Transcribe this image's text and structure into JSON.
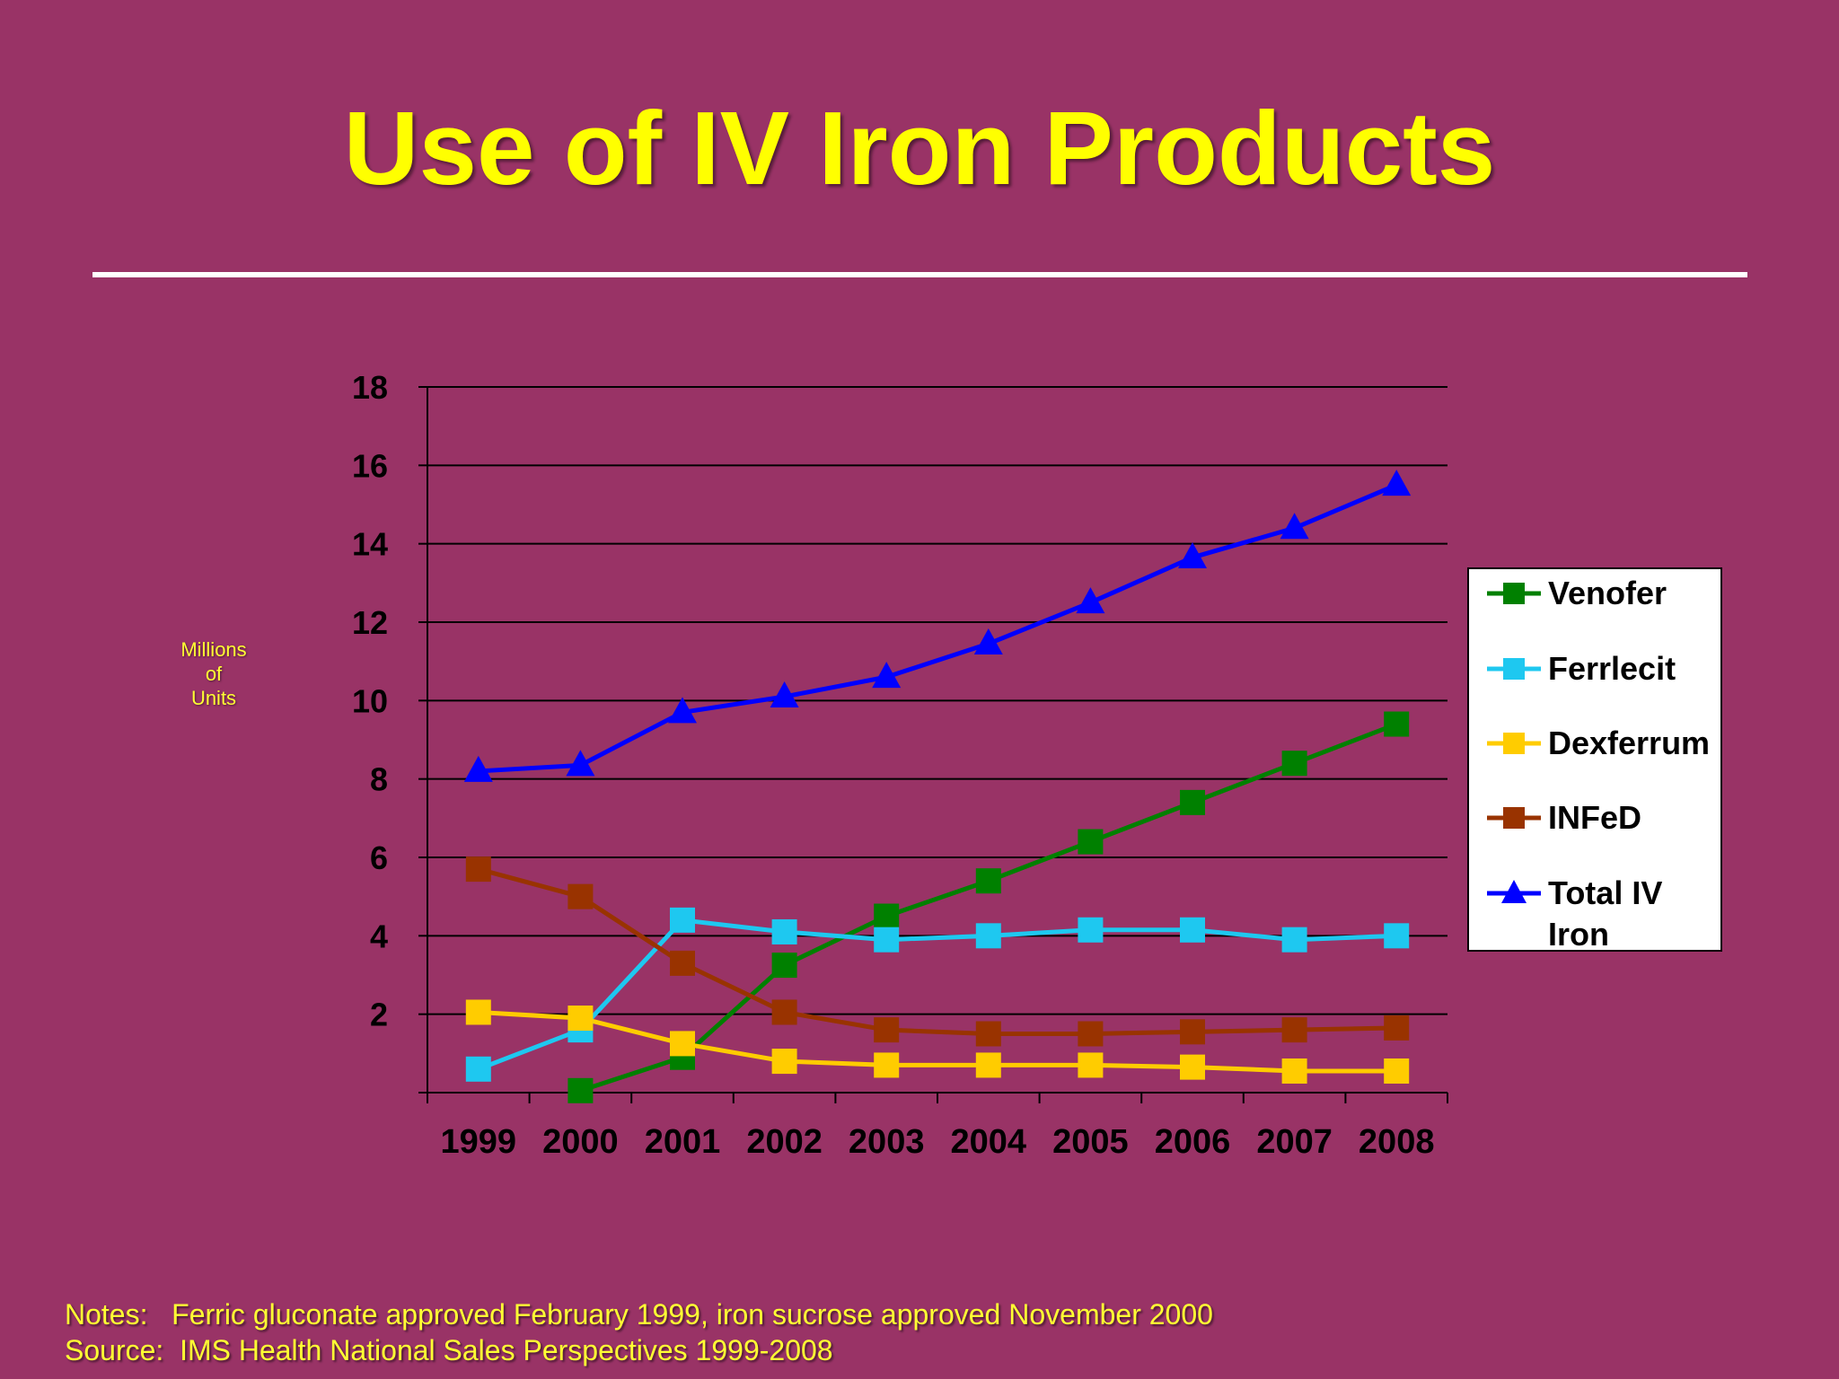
{
  "slide": {
    "title": "Use of IV Iron Products",
    "notes_line": "Notes:   Ferric gluconate approved February 1999, iron sucrose approved November 2000",
    "source_line": "Source:  IMS Health National Sales Perspectives 1999-2008",
    "colors": {
      "background": "#993366",
      "title": "#ffff00",
      "notes": "#ffff33"
    }
  },
  "chart_data": {
    "type": "line",
    "title": "",
    "ylabel_lines": [
      "Millions",
      "of",
      "Units"
    ],
    "xlabel": "",
    "x": [
      "1999",
      "2000",
      "2001",
      "2002",
      "2003",
      "2004",
      "2005",
      "2006",
      "2007",
      "2008"
    ],
    "ylim": [
      0,
      18
    ],
    "yticks": [
      2,
      4,
      6,
      8,
      10,
      12,
      14,
      16,
      18
    ],
    "grid": true,
    "legend_position": "right",
    "series": [
      {
        "name": "Venofer",
        "color": "#008000",
        "marker": "square",
        "values": [
          null,
          0.05,
          0.9,
          3.25,
          4.5,
          5.4,
          6.4,
          7.4,
          8.4,
          9.4
        ]
      },
      {
        "name": "Ferrlecit",
        "color": "#1ec8f0",
        "marker": "square",
        "values": [
          0.6,
          1.6,
          4.4,
          4.1,
          3.9,
          4.0,
          4.15,
          4.15,
          3.9,
          4.0
        ]
      },
      {
        "name": "Dexferrum",
        "color": "#ffcc00",
        "marker": "square",
        "values": [
          2.05,
          1.9,
          1.25,
          0.8,
          0.7,
          0.7,
          0.7,
          0.65,
          0.55,
          0.55
        ]
      },
      {
        "name": "INFeD",
        "color": "#993300",
        "marker": "square",
        "values": [
          5.7,
          5.0,
          3.3,
          2.05,
          1.6,
          1.5,
          1.5,
          1.55,
          1.6,
          1.65
        ]
      },
      {
        "name": "Total IV Iron",
        "color": "#0000ff",
        "marker": "triangle",
        "values": [
          8.2,
          8.35,
          9.7,
          10.1,
          10.6,
          11.45,
          12.5,
          13.65,
          14.4,
          15.5
        ]
      }
    ]
  }
}
